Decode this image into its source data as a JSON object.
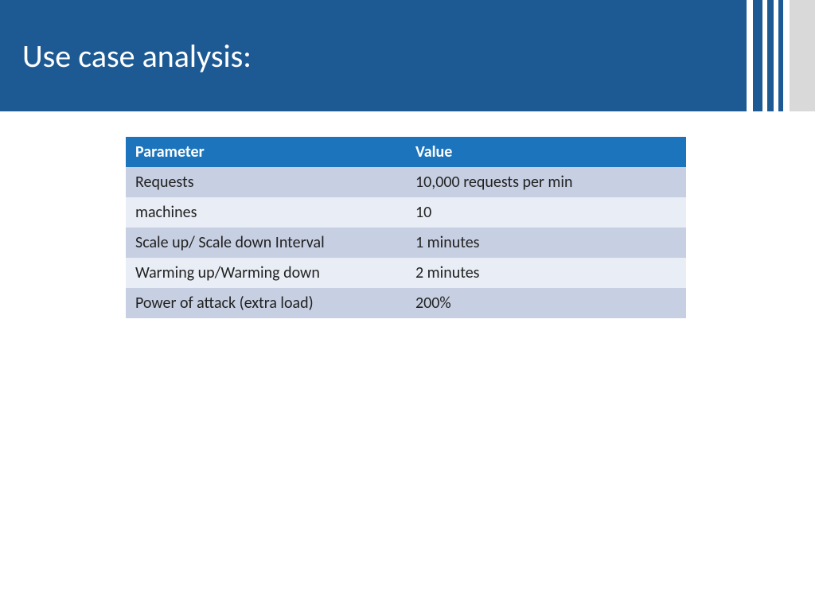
{
  "header": {
    "title": "Use case analysis:",
    "background_color": "#1d5a94",
    "title_color": "#ffffff",
    "title_fontsize": 40,
    "stripe_colors": [
      "#ffffff",
      "#1d5a94",
      "#ffffff",
      "#1d5a94",
      "#ffffff",
      "#1d5a94",
      "#ffffff",
      "#d9d9d9"
    ]
  },
  "table": {
    "type": "table",
    "columns": [
      "Parameter",
      "Value"
    ],
    "rows": [
      [
        "Requests",
        "10,000 requests per min"
      ],
      [
        "machines",
        "10"
      ],
      [
        "Scale up/ Scale down Interval",
        "1 minutes"
      ],
      [
        "Warming up/Warming down",
        "2 minutes"
      ],
      [
        "Power of attack  (extra load)",
        "200%"
      ]
    ],
    "header_bg": "#1c75bc",
    "header_text_color": "#ffffff",
    "row_odd_bg": "#c7cfe2",
    "row_even_bg": "#e9edf5",
    "text_color": "#222222",
    "fontsize": 20,
    "col_widths_pct": [
      50,
      50
    ]
  }
}
